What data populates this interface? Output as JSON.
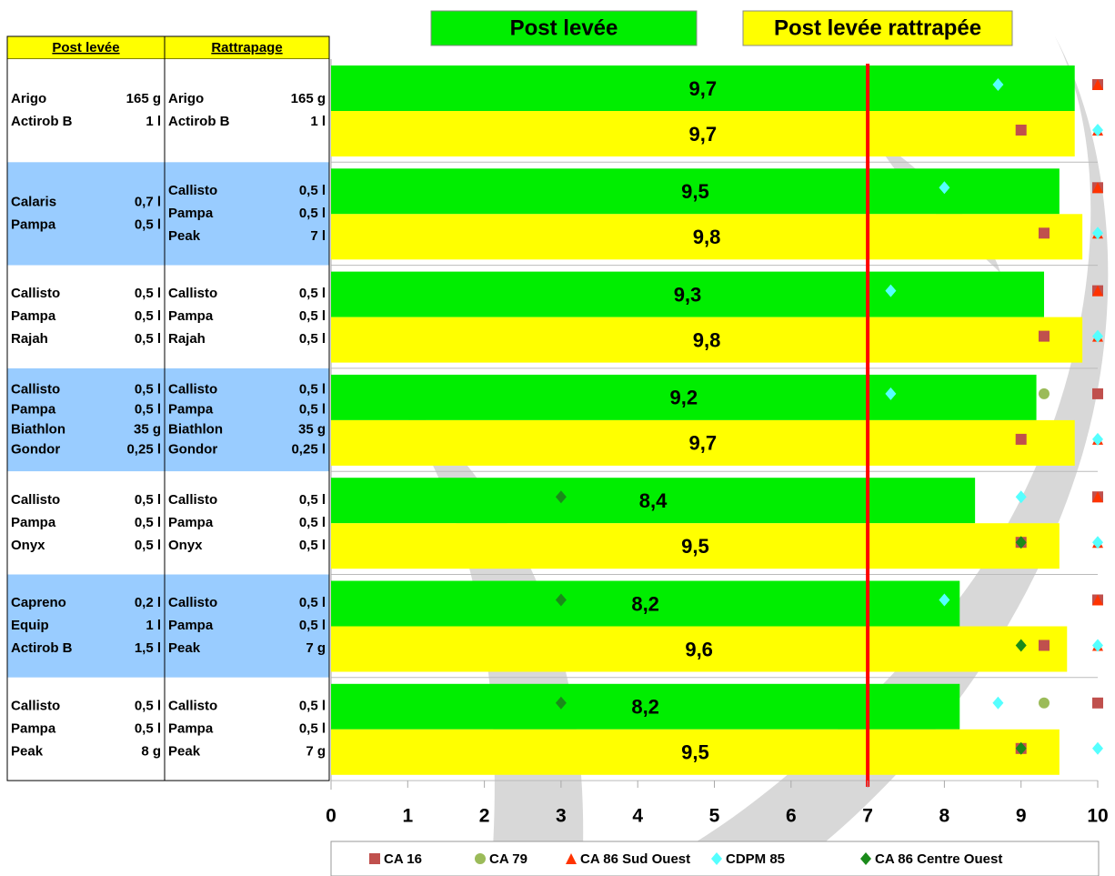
{
  "chart_data": {
    "type": "bar",
    "series": [
      {
        "name": "Post levée",
        "color": "#00ee00",
        "values": [
          9.7,
          9.5,
          9.3,
          9.2,
          8.4,
          8.2,
          8.2
        ],
        "value_labels": [
          "9,7",
          "9,5",
          "9,3",
          "9,2",
          "8,4",
          "8,2",
          "8,2"
        ]
      },
      {
        "name": "Post levée rattrapée",
        "color": "#ffff00",
        "values": [
          9.7,
          9.8,
          9.8,
          9.7,
          9.5,
          9.6,
          9.5
        ],
        "value_labels": [
          "9,7",
          "9,8",
          "9,8",
          "9,7",
          "9,5",
          "9,6",
          "9,5"
        ]
      }
    ],
    "points": [
      {
        "name": "CA 16",
        "color": "#c0504d",
        "marker": "square",
        "post": [
          10,
          10,
          10,
          10,
          10,
          10,
          10
        ],
        "rattrapage": [
          9,
          9.3,
          9.3,
          9,
          9,
          9.3,
          9
        ]
      },
      {
        "name": "CA 79",
        "color": "#9bbb59",
        "marker": "circle",
        "post": [
          null,
          null,
          null,
          9.3,
          null,
          null,
          9.3
        ],
        "rattrapage": [
          null,
          null,
          null,
          null,
          null,
          null,
          null
        ]
      },
      {
        "name": "CA 86 Sud Ouest",
        "color": "#ff3300",
        "marker": "triangle",
        "post": [
          10,
          10,
          10,
          null,
          10,
          10,
          null
        ],
        "rattrapage": [
          10,
          10,
          10,
          10,
          10,
          10,
          null
        ]
      },
      {
        "name": "CDPM 85",
        "color": "#55ffff",
        "marker": "diamond",
        "post": [
          8.7,
          8,
          7.3,
          7.3,
          9,
          8,
          8.7
        ],
        "rattrapage": [
          10,
          10,
          10,
          10,
          10,
          10,
          10
        ]
      },
      {
        "name": "CA 86 Centre Ouest",
        "color": "#1a8a1a",
        "marker": "diamond",
        "post": [
          null,
          null,
          null,
          null,
          3,
          3,
          3
        ],
        "rattrapage": [
          null,
          null,
          null,
          null,
          9,
          9,
          9
        ]
      }
    ],
    "reference_line": 7,
    "reference_color": "#ff0000",
    "xlim": [
      0,
      10
    ],
    "xticks": [
      0,
      1,
      2,
      3,
      4,
      5,
      6,
      7,
      8,
      9,
      10
    ],
    "grid": true
  },
  "table": {
    "headers": [
      "Post levée",
      "Rattrapage"
    ],
    "groups": [
      {
        "left": [
          [
            "Arigo",
            "165 g"
          ],
          [
            "Actirob B",
            "1 l"
          ]
        ],
        "right": [
          [
            "Arigo",
            "165 g"
          ],
          [
            "Actirob B",
            "1 l"
          ]
        ]
      },
      {
        "left": [
          [
            "Calaris",
            "0,7 l"
          ],
          [
            "Pampa",
            "0,5 l"
          ]
        ],
        "right": [
          [
            "Callisto",
            "0,5 l"
          ],
          [
            "Pampa",
            "0,5 l"
          ],
          [
            "Peak",
            "7 l"
          ]
        ]
      },
      {
        "left": [
          [
            "Callisto",
            "0,5 l"
          ],
          [
            "Pampa",
            "0,5 l"
          ],
          [
            "Rajah",
            "0,5 l"
          ]
        ],
        "right": [
          [
            "Callisto",
            "0,5 l"
          ],
          [
            "Pampa",
            "0,5 l"
          ],
          [
            "Rajah",
            "0,5 l"
          ]
        ]
      },
      {
        "left": [
          [
            "Callisto",
            "0,5 l"
          ],
          [
            "Pampa",
            "0,5 l"
          ],
          [
            "Biathlon",
            "35 g"
          ],
          [
            "Gondor",
            "0,25 l"
          ]
        ],
        "right": [
          [
            "Callisto",
            "0,5 l"
          ],
          [
            "Pampa",
            "0,5 l"
          ],
          [
            "Biathlon",
            "35 g"
          ],
          [
            "Gondor",
            "0,25 l"
          ]
        ]
      },
      {
        "left": [
          [
            "Callisto",
            "0,5 l"
          ],
          [
            "Pampa",
            "0,5 l"
          ],
          [
            "Onyx",
            "0,5 l"
          ]
        ],
        "right": [
          [
            "Callisto",
            "0,5 l"
          ],
          [
            "Pampa",
            "0,5 l"
          ],
          [
            "Onyx",
            "0,5 l"
          ]
        ]
      },
      {
        "left": [
          [
            "Capreno",
            "0,2 l"
          ],
          [
            "Equip",
            "1 l"
          ],
          [
            "Actirob B",
            "1,5 l"
          ]
        ],
        "right": [
          [
            "Callisto",
            "0,5 l"
          ],
          [
            "Pampa",
            "0,5 l"
          ],
          [
            "Peak",
            "7 g"
          ]
        ]
      },
      {
        "left": [
          [
            "Callisto",
            "0,5 l"
          ],
          [
            "Pampa",
            "0,5 l"
          ],
          [
            "Peak",
            "8 g"
          ]
        ],
        "right": [
          [
            "Callisto",
            "0,5 l"
          ],
          [
            "Pampa",
            "0,5 l"
          ],
          [
            "Peak",
            "7 g"
          ]
        ]
      }
    ]
  }
}
